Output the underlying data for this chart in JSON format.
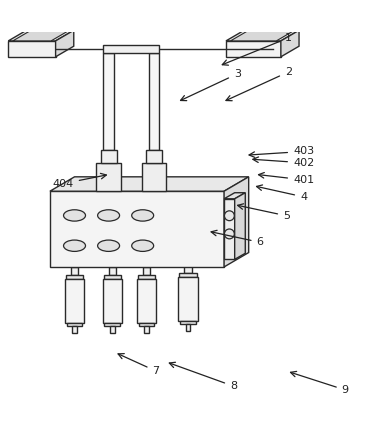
{
  "bg_color": "#ffffff",
  "line_color": "#2a2a2a",
  "lw": 1.0,
  "fig_w": 3.8,
  "fig_h": 4.43,
  "dpi": 100,
  "labels_info": [
    [
      "1",
      [
        0.76,
        0.985
      ],
      [
        0.575,
        0.91
      ]
    ],
    [
      "2",
      [
        0.76,
        0.895
      ],
      [
        0.585,
        0.815
      ]
    ],
    [
      "3",
      [
        0.625,
        0.89
      ],
      [
        0.465,
        0.815
      ]
    ],
    [
      "4",
      [
        0.8,
        0.565
      ],
      [
        0.665,
        0.595
      ]
    ],
    [
      "5",
      [
        0.755,
        0.515
      ],
      [
        0.615,
        0.545
      ]
    ],
    [
      "6",
      [
        0.685,
        0.445
      ],
      [
        0.545,
        0.475
      ]
    ],
    [
      "7",
      [
        0.41,
        0.105
      ],
      [
        0.3,
        0.155
      ]
    ],
    [
      "8",
      [
        0.615,
        0.065
      ],
      [
        0.435,
        0.13
      ]
    ],
    [
      "9",
      [
        0.91,
        0.055
      ],
      [
        0.755,
        0.105
      ]
    ],
    [
      "401",
      [
        0.8,
        0.61
      ],
      [
        0.67,
        0.625
      ]
    ],
    [
      "402",
      [
        0.8,
        0.655
      ],
      [
        0.655,
        0.665
      ]
    ],
    [
      "403",
      [
        0.8,
        0.685
      ],
      [
        0.645,
        0.675
      ]
    ],
    [
      "404",
      [
        0.165,
        0.6
      ],
      [
        0.29,
        0.625
      ]
    ]
  ]
}
